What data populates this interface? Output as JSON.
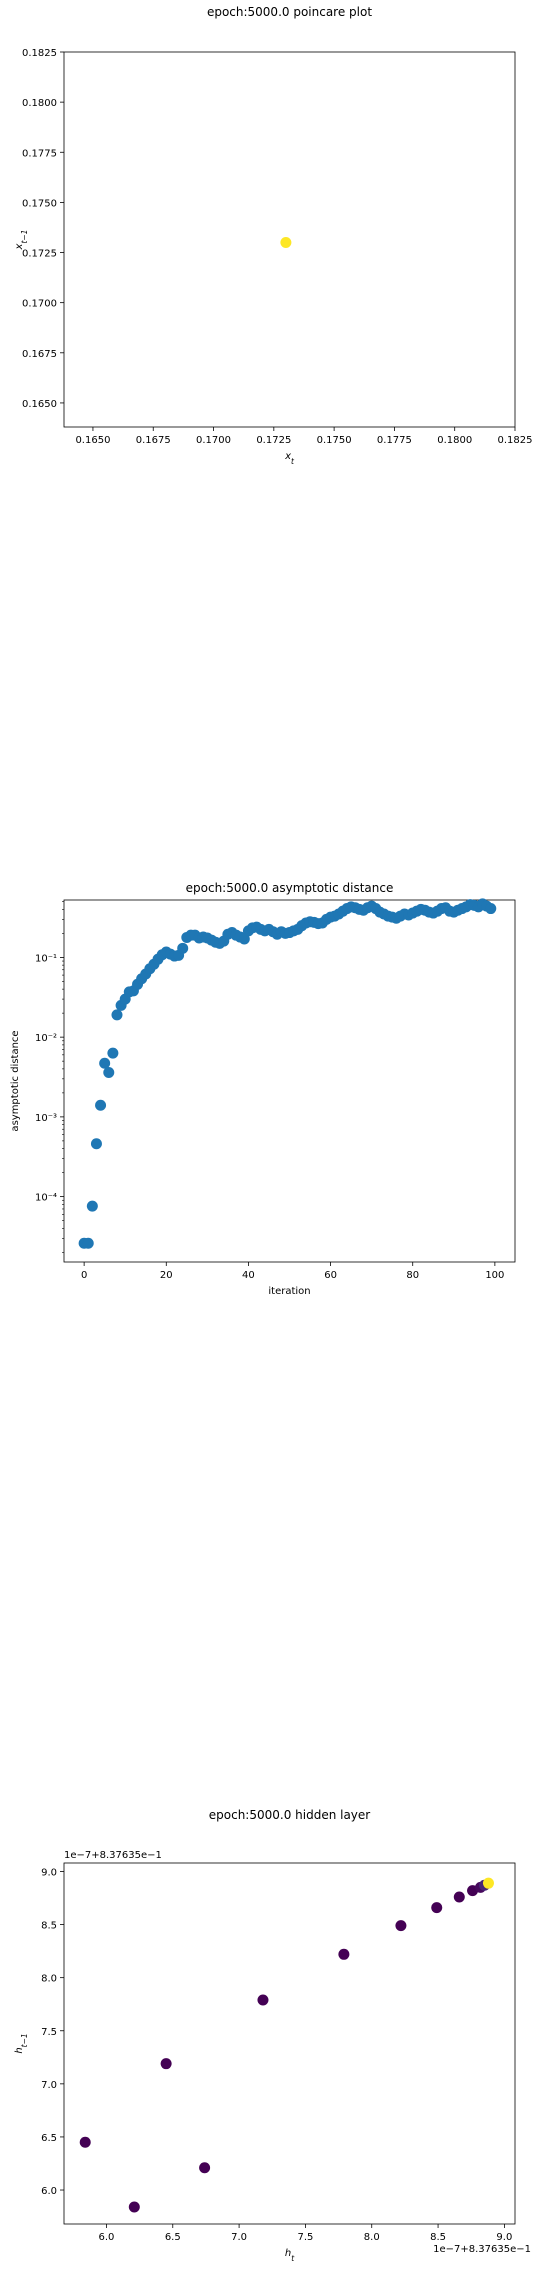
{
  "chart_data": [
    {
      "type": "scatter",
      "title": "epoch:5000.0 poincare plot",
      "xlabel": "x_t",
      "ylabel": "x_{t-1}",
      "xlim": [
        0.1638,
        0.1825
      ],
      "ylim": [
        0.1638,
        0.1825
      ],
      "xticks": [
        "0.1650",
        "0.1675",
        "0.1700",
        "0.1725",
        "0.1750",
        "0.1775",
        "0.1800",
        "0.1825"
      ],
      "yticks": [
        "0.1650",
        "0.1675",
        "0.1700",
        "0.1725",
        "0.1750",
        "0.1775",
        "0.1800",
        "0.1825"
      ],
      "points": [
        {
          "x": 0.173,
          "y": 0.173
        }
      ],
      "point_color": "#fde725",
      "grid": false
    },
    {
      "type": "scatter",
      "title": "epoch:5000.0 asymptotic distance",
      "xlabel": "iteration",
      "ylabel": "asymptotic distance",
      "yscale": "log",
      "xlim": [
        -4.9,
        104.9
      ],
      "ylim_log10": [
        -4.82,
        -0.28
      ],
      "xticks": [
        "0",
        "20",
        "40",
        "60",
        "80",
        "100"
      ],
      "yticks": [
        "10⁻⁴",
        "10⁻³",
        "10⁻²",
        "10⁻¹"
      ],
      "x": [
        0,
        1,
        2,
        3,
        4,
        5,
        6,
        7,
        8,
        9,
        10,
        11,
        12,
        13,
        14,
        15,
        16,
        17,
        18,
        19,
        20,
        21,
        22,
        23,
        24,
        25,
        26,
        27,
        28,
        29,
        30,
        31,
        32,
        33,
        34,
        35,
        36,
        37,
        38,
        39,
        40,
        41,
        42,
        43,
        44,
        45,
        46,
        47,
        48,
        49,
        50,
        51,
        52,
        53,
        54,
        55,
        56,
        57,
        58,
        59,
        60,
        61,
        62,
        63,
        64,
        65,
        66,
        67,
        68,
        69,
        70,
        71,
        72,
        73,
        74,
        75,
        76,
        77,
        78,
        79,
        80,
        81,
        82,
        83,
        84,
        85,
        86,
        87,
        88,
        89,
        90,
        91,
        92,
        93,
        94,
        95,
        96,
        97,
        98,
        99
      ],
      "y": [
        2.6e-05,
        2.6e-05,
        7.6e-05,
        0.00046,
        0.0014,
        0.0047,
        0.0036,
        0.0063,
        0.019,
        0.025,
        0.03,
        0.037,
        0.038,
        0.046,
        0.054,
        0.062,
        0.072,
        0.082,
        0.095,
        0.108,
        0.117,
        0.11,
        0.104,
        0.106,
        0.13,
        0.178,
        0.19,
        0.19,
        0.175,
        0.18,
        0.175,
        0.165,
        0.155,
        0.15,
        0.16,
        0.195,
        0.205,
        0.19,
        0.18,
        0.17,
        0.215,
        0.235,
        0.24,
        0.225,
        0.215,
        0.225,
        0.21,
        0.195,
        0.21,
        0.2,
        0.205,
        0.215,
        0.225,
        0.25,
        0.27,
        0.28,
        0.275,
        0.265,
        0.27,
        0.3,
        0.32,
        0.33,
        0.35,
        0.38,
        0.41,
        0.43,
        0.42,
        0.4,
        0.39,
        0.42,
        0.44,
        0.41,
        0.37,
        0.35,
        0.33,
        0.32,
        0.31,
        0.33,
        0.35,
        0.34,
        0.36,
        0.38,
        0.4,
        0.39,
        0.37,
        0.36,
        0.38,
        0.41,
        0.42,
        0.38,
        0.37,
        0.39,
        0.41,
        0.43,
        0.46,
        0.45,
        0.43,
        0.47,
        0.44,
        0.41
      ],
      "point_color": "#1f77b4",
      "grid": false
    },
    {
      "type": "scatter",
      "title": "epoch:5000.0 hidden layer",
      "xlabel": "h_t",
      "ylabel": "h_{t-1}",
      "offset_text_x": "1e−7+8.37635e−1",
      "offset_text_y": "1e−7+8.37635e−1",
      "xlim": [
        5.68,
        9.08
      ],
      "ylim": [
        5.68,
        9.08
      ],
      "xticks": [
        "6.0",
        "6.5",
        "7.0",
        "7.5",
        "8.0",
        "8.5",
        "9.0"
      ],
      "yticks": [
        "6.0",
        "6.5",
        "7.0",
        "7.5",
        "8.0",
        "8.5",
        "9.0"
      ],
      "points": [
        {
          "x": 5.84,
          "y": 6.45,
          "color": "#440154"
        },
        {
          "x": 6.21,
          "y": 5.84,
          "color": "#440154"
        },
        {
          "x": 6.45,
          "y": 7.19,
          "color": "#440154"
        },
        {
          "x": 6.74,
          "y": 6.21,
          "color": "#440154"
        },
        {
          "x": 7.18,
          "y": 7.79,
          "color": "#440154"
        },
        {
          "x": 7.79,
          "y": 8.22,
          "color": "#440154"
        },
        {
          "x": 8.22,
          "y": 8.49,
          "color": "#440154"
        },
        {
          "x": 8.49,
          "y": 8.66,
          "color": "#440154"
        },
        {
          "x": 8.66,
          "y": 8.76,
          "color": "#440154"
        },
        {
          "x": 8.76,
          "y": 8.82,
          "color": "#440154"
        },
        {
          "x": 8.82,
          "y": 8.85,
          "color": "#46085c"
        },
        {
          "x": 8.85,
          "y": 8.87,
          "color": "#482475"
        },
        {
          "x": 8.88,
          "y": 8.89,
          "color": "#fde725"
        }
      ],
      "grid": false
    }
  ]
}
